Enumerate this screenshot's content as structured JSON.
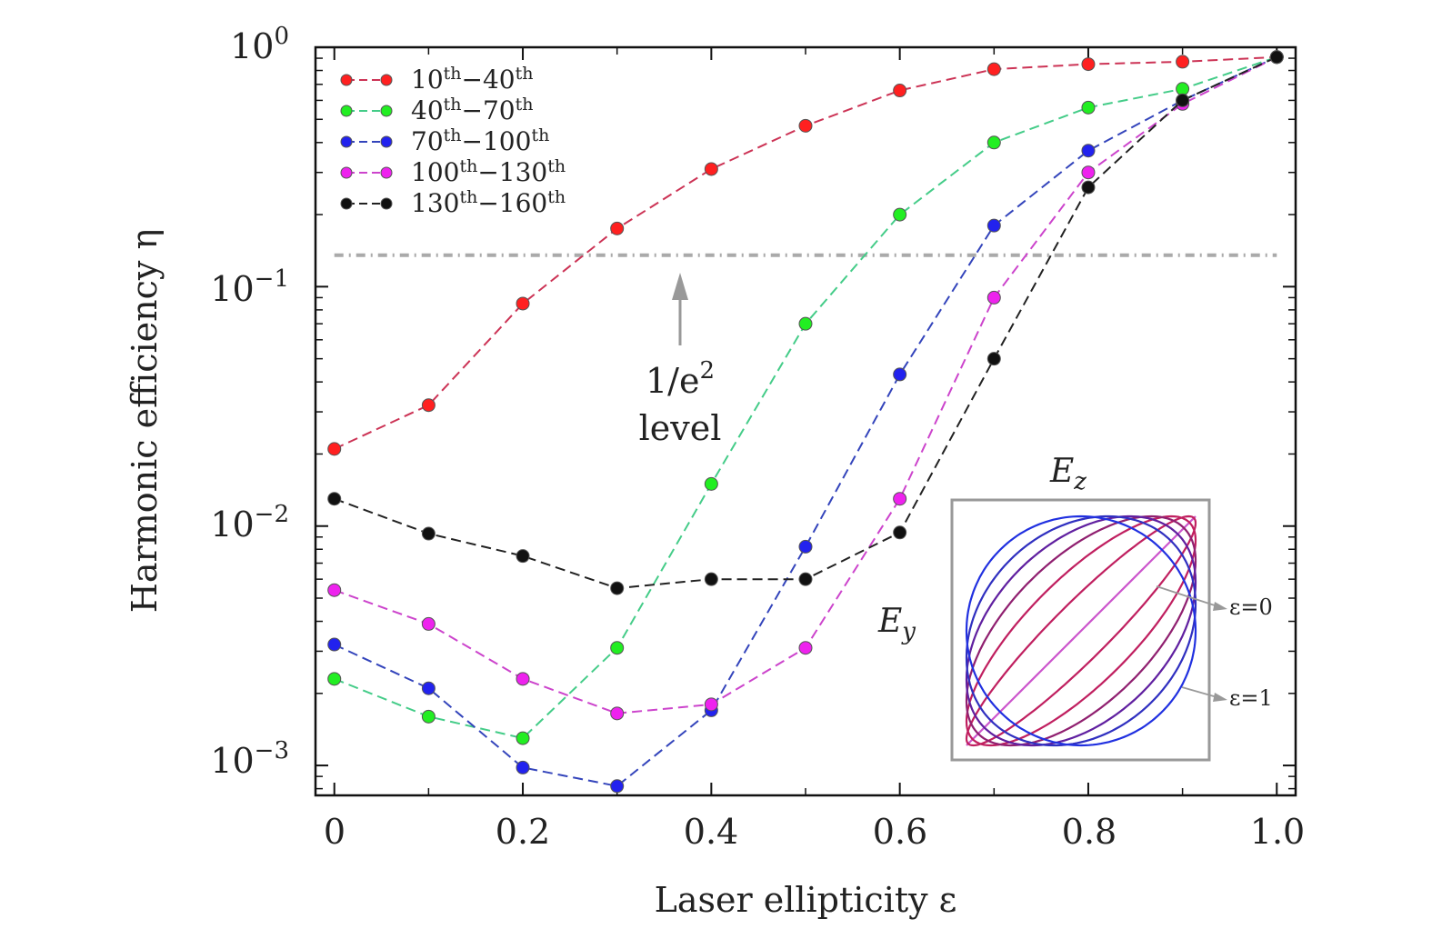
{
  "chart_data": {
    "type": "line",
    "xlabel": "Laser ellipticity ε",
    "ylabel": "Harmonic efficiency η",
    "xlim": [
      -0.02,
      1.02
    ],
    "ylim": [
      0.00075,
      1.0
    ],
    "yscale": "log",
    "x": [
      0,
      0.1,
      0.2,
      0.3,
      0.4,
      0.5,
      0.6,
      0.7,
      0.8,
      0.9,
      1.0
    ],
    "x_ticks": [
      0,
      0.2,
      0.4,
      0.6,
      0.8,
      1.0
    ],
    "x_tick_labels": [
      "0",
      "0.2",
      "0.4",
      "0.6",
      "0.8",
      "1.0"
    ],
    "y_ticks": [
      1,
      0.1,
      0.01,
      0.001
    ],
    "y_tick_labels": [
      {
        "base": "10",
        "exp": "0"
      },
      {
        "base": "10",
        "exp": "−1"
      },
      {
        "base": "10",
        "exp": "−2"
      },
      {
        "base": "10",
        "exp": "−3"
      }
    ],
    "legend_position": "top-left",
    "series": [
      {
        "name": "10th−40th",
        "name_parts": {
          "a": "10",
          "b": "40"
        },
        "color": "#ff2020",
        "line_color": "#cc3355",
        "values": [
          0.021,
          0.032,
          0.085,
          0.175,
          0.31,
          0.47,
          0.66,
          0.81,
          0.85,
          0.87,
          0.91
        ]
      },
      {
        "name": "40th−70th",
        "name_parts": {
          "a": "40",
          "b": "70"
        },
        "color": "#22ee22",
        "line_color": "#44cc88",
        "values": [
          0.0023,
          0.0016,
          0.0013,
          0.0031,
          0.015,
          0.07,
          0.2,
          0.4,
          0.56,
          0.67,
          0.91
        ]
      },
      {
        "name": "70th−100th",
        "name_parts": {
          "a": "70",
          "b": "100"
        },
        "color": "#2222ee",
        "line_color": "#3344bb",
        "values": [
          0.0032,
          0.0021,
          0.00098,
          0.00082,
          0.0017,
          0.0082,
          0.043,
          0.18,
          0.37,
          0.6,
          0.91
        ]
      },
      {
        "name": "100th−130th",
        "name_parts": {
          "a": "100",
          "b": "130"
        },
        "color": "#ee22ee",
        "line_color": "#cc44cc",
        "values": [
          0.0054,
          0.0039,
          0.0023,
          0.00165,
          0.0018,
          0.0031,
          0.013,
          0.09,
          0.3,
          0.58,
          0.91
        ]
      },
      {
        "name": "130th−160th",
        "name_parts": {
          "a": "130",
          "b": "160"
        },
        "color": "#111111",
        "line_color": "#222222",
        "values": [
          0.013,
          0.0093,
          0.0075,
          0.0055,
          0.006,
          0.006,
          0.0094,
          0.05,
          0.26,
          0.6,
          0.91
        ]
      }
    ],
    "reference_line": {
      "y": 0.1353,
      "color": "#aaaaaa"
    },
    "annotation": {
      "line1": "1/e",
      "line1_exp": "2",
      "line2": "level",
      "x": 0.37
    },
    "inset": {
      "title": "E",
      "title_sub": "z",
      "side_label": "E",
      "side_sub": "y",
      "label_eps0": "ε=0",
      "label_eps1": "ε=1"
    }
  }
}
